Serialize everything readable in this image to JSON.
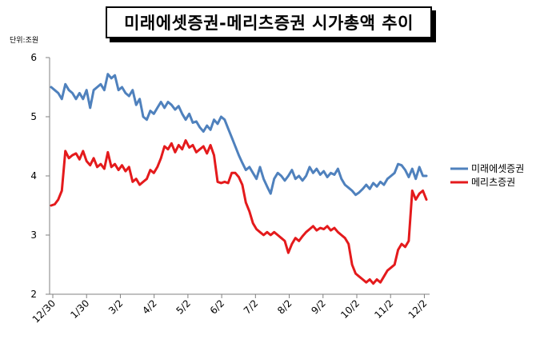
{
  "chart_data": {
    "type": "line",
    "title": "미래에셋증권-메리츠증권 시가총액 추이",
    "unit_label": "단위:조원",
    "ylim": [
      2,
      6
    ],
    "y_ticks": [
      "2",
      "3",
      "4",
      "5",
      "6"
    ],
    "x_ticks": [
      "12/30",
      "1/30",
      "3/2",
      "4/2",
      "5/2",
      "6/2",
      "7/2",
      "8/2",
      "9/2",
      "10/2",
      "11/2",
      "12/2"
    ],
    "grid": false,
    "legend_position": "right",
    "series": [
      {
        "name": "미래에셋증권",
        "color": "#4f81bd",
        "points": [
          [
            0,
            5.5
          ],
          [
            1,
            5.45
          ],
          [
            2,
            5.4
          ],
          [
            3,
            5.3
          ],
          [
            4,
            5.55
          ],
          [
            5,
            5.45
          ],
          [
            6,
            5.4
          ],
          [
            7,
            5.3
          ],
          [
            8,
            5.4
          ],
          [
            9,
            5.3
          ],
          [
            10,
            5.45
          ],
          [
            11,
            5.15
          ],
          [
            12,
            5.45
          ],
          [
            13,
            5.5
          ],
          [
            14,
            5.55
          ],
          [
            15,
            5.45
          ],
          [
            16,
            5.72
          ],
          [
            17,
            5.65
          ],
          [
            18,
            5.7
          ],
          [
            19,
            5.45
          ],
          [
            20,
            5.5
          ],
          [
            21,
            5.4
          ],
          [
            22,
            5.35
          ],
          [
            23,
            5.45
          ],
          [
            24,
            5.2
          ],
          [
            25,
            5.3
          ],
          [
            26,
            5.0
          ],
          [
            27,
            4.95
          ],
          [
            28,
            5.1
          ],
          [
            29,
            5.05
          ],
          [
            30,
            5.15
          ],
          [
            31,
            5.25
          ],
          [
            32,
            5.15
          ],
          [
            33,
            5.25
          ],
          [
            34,
            5.2
          ],
          [
            35,
            5.12
          ],
          [
            36,
            5.18
          ],
          [
            37,
            5.05
          ],
          [
            38,
            4.95
          ],
          [
            39,
            5.05
          ],
          [
            40,
            4.9
          ],
          [
            41,
            4.92
          ],
          [
            42,
            4.82
          ],
          [
            43,
            4.75
          ],
          [
            44,
            4.85
          ],
          [
            45,
            4.78
          ],
          [
            46,
            4.95
          ],
          [
            47,
            4.88
          ],
          [
            48,
            5.0
          ],
          [
            49,
            4.95
          ],
          [
            50,
            4.8
          ],
          [
            51,
            4.65
          ],
          [
            52,
            4.5
          ],
          [
            53,
            4.35
          ],
          [
            54,
            4.22
          ],
          [
            55,
            4.1
          ],
          [
            56,
            4.15
          ],
          [
            57,
            4.05
          ],
          [
            58,
            3.95
          ],
          [
            59,
            4.15
          ],
          [
            60,
            3.95
          ],
          [
            61,
            3.82
          ],
          [
            62,
            3.7
          ],
          [
            63,
            3.95
          ],
          [
            64,
            4.05
          ],
          [
            65,
            4.0
          ],
          [
            66,
            3.92
          ],
          [
            67,
            4.0
          ],
          [
            68,
            4.1
          ],
          [
            69,
            3.95
          ],
          [
            70,
            4.0
          ],
          [
            71,
            3.92
          ],
          [
            72,
            4.0
          ],
          [
            73,
            4.15
          ],
          [
            74,
            4.05
          ],
          [
            75,
            4.12
          ],
          [
            76,
            4.02
          ],
          [
            77,
            4.08
          ],
          [
            78,
            3.98
          ],
          [
            79,
            4.05
          ],
          [
            80,
            4.02
          ],
          [
            81,
            4.12
          ],
          [
            82,
            3.95
          ],
          [
            83,
            3.85
          ],
          [
            84,
            3.8
          ],
          [
            85,
            3.75
          ],
          [
            86,
            3.68
          ],
          [
            87,
            3.72
          ],
          [
            88,
            3.78
          ],
          [
            89,
            3.85
          ],
          [
            90,
            3.78
          ],
          [
            91,
            3.88
          ],
          [
            92,
            3.82
          ],
          [
            93,
            3.9
          ],
          [
            94,
            3.85
          ],
          [
            95,
            3.95
          ],
          [
            96,
            4.0
          ],
          [
            97,
            4.05
          ],
          [
            98,
            4.2
          ],
          [
            99,
            4.18
          ],
          [
            100,
            4.1
          ],
          [
            101,
            3.98
          ],
          [
            102,
            4.12
          ],
          [
            103,
            3.95
          ],
          [
            104,
            4.15
          ],
          [
            105,
            4.0
          ],
          [
            106,
            4.0
          ]
        ]
      },
      {
        "name": "메리츠증권",
        "color": "#e41a1c",
        "points": [
          [
            0,
            3.5
          ],
          [
            1,
            3.52
          ],
          [
            2,
            3.6
          ],
          [
            3,
            3.75
          ],
          [
            4,
            4.42
          ],
          [
            5,
            4.3
          ],
          [
            6,
            4.35
          ],
          [
            7,
            4.38
          ],
          [
            8,
            4.28
          ],
          [
            9,
            4.42
          ],
          [
            10,
            4.25
          ],
          [
            11,
            4.18
          ],
          [
            12,
            4.3
          ],
          [
            13,
            4.15
          ],
          [
            14,
            4.2
          ],
          [
            15,
            4.12
          ],
          [
            16,
            4.4
          ],
          [
            17,
            4.15
          ],
          [
            18,
            4.2
          ],
          [
            19,
            4.1
          ],
          [
            20,
            4.18
          ],
          [
            21,
            4.08
          ],
          [
            22,
            4.15
          ],
          [
            23,
            3.9
          ],
          [
            24,
            3.95
          ],
          [
            25,
            3.85
          ],
          [
            26,
            3.9
          ],
          [
            27,
            3.95
          ],
          [
            28,
            4.1
          ],
          [
            29,
            4.05
          ],
          [
            30,
            4.15
          ],
          [
            31,
            4.3
          ],
          [
            32,
            4.5
          ],
          [
            33,
            4.45
          ],
          [
            34,
            4.55
          ],
          [
            35,
            4.4
          ],
          [
            36,
            4.52
          ],
          [
            37,
            4.45
          ],
          [
            38,
            4.6
          ],
          [
            39,
            4.48
          ],
          [
            40,
            4.52
          ],
          [
            41,
            4.4
          ],
          [
            42,
            4.45
          ],
          [
            43,
            4.5
          ],
          [
            44,
            4.38
          ],
          [
            45,
            4.52
          ],
          [
            46,
            4.35
          ],
          [
            47,
            3.9
          ],
          [
            48,
            3.88
          ],
          [
            49,
            3.9
          ],
          [
            50,
            3.88
          ],
          [
            51,
            4.05
          ],
          [
            52,
            4.05
          ],
          [
            53,
            3.98
          ],
          [
            54,
            3.85
          ],
          [
            55,
            3.55
          ],
          [
            56,
            3.4
          ],
          [
            57,
            3.2
          ],
          [
            58,
            3.1
          ],
          [
            59,
            3.05
          ],
          [
            60,
            3.0
          ],
          [
            61,
            3.05
          ],
          [
            62,
            3.0
          ],
          [
            63,
            3.05
          ],
          [
            64,
            3.0
          ],
          [
            65,
            2.95
          ],
          [
            66,
            2.9
          ],
          [
            67,
            2.7
          ],
          [
            68,
            2.85
          ],
          [
            69,
            2.95
          ],
          [
            70,
            2.9
          ],
          [
            71,
            2.98
          ],
          [
            72,
            3.05
          ],
          [
            73,
            3.1
          ],
          [
            74,
            3.15
          ],
          [
            75,
            3.08
          ],
          [
            76,
            3.12
          ],
          [
            77,
            3.1
          ],
          [
            78,
            3.15
          ],
          [
            79,
            3.08
          ],
          [
            80,
            3.12
          ],
          [
            81,
            3.05
          ],
          [
            82,
            3.0
          ],
          [
            83,
            2.95
          ],
          [
            84,
            2.85
          ],
          [
            85,
            2.5
          ],
          [
            86,
            2.35
          ],
          [
            87,
            2.3
          ],
          [
            88,
            2.25
          ],
          [
            89,
            2.2
          ],
          [
            90,
            2.25
          ],
          [
            91,
            2.18
          ],
          [
            92,
            2.25
          ],
          [
            93,
            2.2
          ],
          [
            94,
            2.3
          ],
          [
            95,
            2.4
          ],
          [
            96,
            2.45
          ],
          [
            97,
            2.5
          ],
          [
            98,
            2.75
          ],
          [
            99,
            2.85
          ],
          [
            100,
            2.8
          ],
          [
            101,
            2.9
          ],
          [
            102,
            3.75
          ],
          [
            103,
            3.6
          ],
          [
            104,
            3.7
          ],
          [
            105,
            3.75
          ],
          [
            106,
            3.6
          ]
        ]
      }
    ]
  }
}
